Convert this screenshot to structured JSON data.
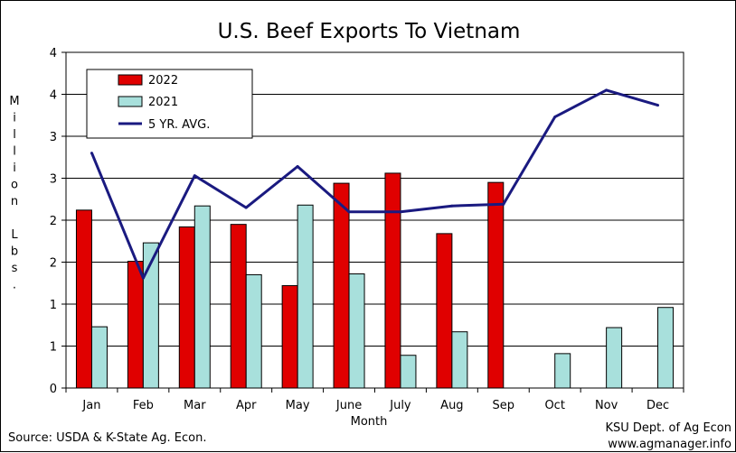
{
  "chart_data": {
    "type": "bar",
    "title": "U.S. Beef Exports To Vietnam",
    "xlabel": "Month",
    "ylabel": "Million Lbs.",
    "categories": [
      "Jan",
      "Feb",
      "Mar",
      "Apr",
      "May",
      "June",
      "July",
      "Aug",
      "Sep",
      "Oct",
      "Nov",
      "Dec"
    ],
    "ylim": [
      0,
      4
    ],
    "ytick_labels": [
      "0",
      "1",
      "1",
      "2",
      "2",
      "3",
      "3",
      "4",
      "4"
    ],
    "series": [
      {
        "name": "2022",
        "kind": "bar",
        "color": "#e00000",
        "values": [
          2.12,
          1.51,
          1.92,
          1.95,
          1.22,
          2.44,
          2.56,
          1.84,
          2.45,
          null,
          null,
          null
        ]
      },
      {
        "name": "2021",
        "kind": "bar",
        "color": "#a8e0dc",
        "values": [
          0.73,
          1.73,
          2.17,
          1.35,
          2.18,
          1.36,
          0.39,
          0.67,
          null,
          0.41,
          0.72,
          0.96
        ]
      },
      {
        "name": "5 YR. AVG.",
        "kind": "line",
        "color": "#1a1a80",
        "values": [
          2.8,
          1.31,
          2.53,
          2.15,
          2.64,
          2.1,
          2.1,
          2.17,
          2.19,
          3.23,
          3.55,
          3.37
        ]
      }
    ],
    "legend_position": "top-left",
    "grid": true
  },
  "footer": {
    "source": "Source:  USDA & K-State Ag. Econ.",
    "credit_line1": "KSU Dept. of Ag Econ",
    "credit_line2": "www.agmanager.info"
  }
}
